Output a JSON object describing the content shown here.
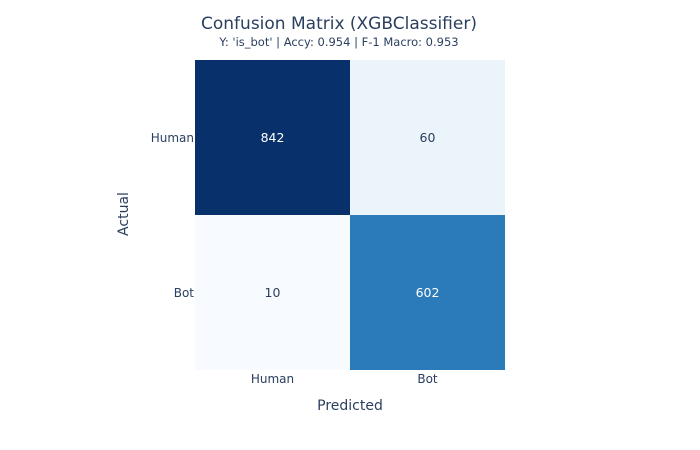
{
  "chart_data": {
    "type": "heatmap",
    "title": "Confusion Matrix (XGBClassifier)",
    "subtitle": "Y: 'is_bot' | Accy: 0.954 | F-1 Macro: 0.953",
    "xlabel": "Predicted",
    "ylabel": "Actual",
    "x_categories": [
      "Human",
      "Bot"
    ],
    "y_categories": [
      "Human",
      "Bot"
    ],
    "values": [
      [
        842,
        60
      ],
      [
        10,
        602
      ]
    ],
    "colorscale": "Blues",
    "colors": {
      "text_dark": "#2a3f5f",
      "text_light": "#ffffff",
      "scale": [
        "#f7fbff",
        "#deebf7",
        "#c6dbef",
        "#9ecae1",
        "#6baed6",
        "#4292c6",
        "#2171b5",
        "#08519c",
        "#08306b"
      ]
    }
  }
}
